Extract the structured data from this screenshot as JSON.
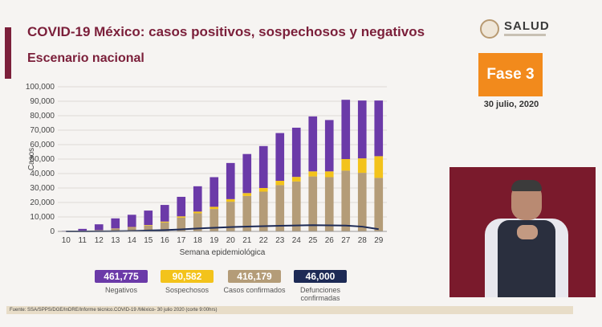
{
  "title": "COVID-19 México: casos positivos, sospechosos y negativos",
  "subtitle": "Escenario nacional",
  "logo_text": "SALUD",
  "phase_label": "Fase 3",
  "date": "30 julio, 2020",
  "footer": "Fuente: SSA/SPPS/DGE/InDRE/Informe técnico.COVID-19 /México- 30 julio 2020 (corte 9:00hrs)",
  "legend": [
    {
      "value": "461,775",
      "label": "Negativos",
      "color": "#6b3aa8"
    },
    {
      "value": "90,582",
      "label": "Sospechosos",
      "color": "#f3c31b"
    },
    {
      "value": "416,179",
      "label": "Casos confirmados",
      "color": "#b49c78"
    },
    {
      "value": "46,000",
      "label": "Defunciones confirmadas",
      "color": "#1d2a55"
    }
  ],
  "chart_data": {
    "type": "bar",
    "stacked": true,
    "title": "",
    "xlabel": "Semana epidemiológica",
    "ylabel": "Casos",
    "ylim": [
      0,
      100000
    ],
    "yticks": [
      0,
      10000,
      20000,
      30000,
      40000,
      50000,
      60000,
      70000,
      80000,
      90000,
      100000
    ],
    "ytick_labels": [
      "0",
      "10,000",
      "20,000",
      "30,000",
      "40,000",
      "50,000",
      "60,000",
      "70,000",
      "80,000",
      "90,000",
      "100,000"
    ],
    "categories": [
      "10",
      "11",
      "12",
      "13",
      "14",
      "15",
      "16",
      "17",
      "18",
      "19",
      "20",
      "21",
      "22",
      "23",
      "24",
      "25",
      "26",
      "27",
      "28",
      "29"
    ],
    "series": [
      {
        "name": "Casos confirmados",
        "color": "#b49c78",
        "values": [
          50,
          200,
          800,
          1800,
          2700,
          4000,
          6200,
          9500,
          12500,
          15500,
          20500,
          24500,
          27500,
          32000,
          34500,
          38000,
          37500,
          42000,
          40500,
          37000
        ]
      },
      {
        "name": "Sospechosos",
        "color": "#f3c31b",
        "values": [
          20,
          50,
          100,
          200,
          300,
          400,
          600,
          900,
          1200,
          1500,
          1800,
          2000,
          2500,
          3000,
          3200,
          3500,
          4000,
          8000,
          10000,
          15000
        ]
      },
      {
        "name": "Negativos",
        "color": "#6b3aa8",
        "values": [
          300,
          1500,
          4000,
          7000,
          8500,
          10000,
          11500,
          13500,
          17500,
          20500,
          25000,
          27000,
          29000,
          33000,
          34000,
          38000,
          35500,
          41000,
          40000,
          38500
        ]
      }
    ],
    "line": {
      "name": "Defunciones confirmadas",
      "color": "#1d2a55",
      "values": [
        0,
        10,
        40,
        150,
        300,
        600,
        900,
        1400,
        2000,
        2500,
        3000,
        3300,
        3600,
        3900,
        4100,
        4300,
        4200,
        4000,
        3300,
        1500
      ]
    },
    "grid": true
  }
}
